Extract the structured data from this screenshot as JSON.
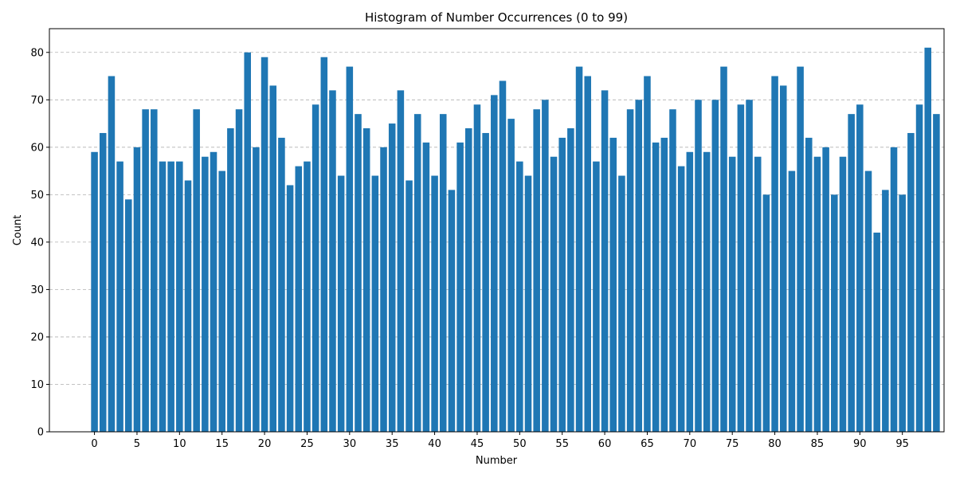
{
  "chart_data": {
    "type": "bar",
    "title": "Histogram of Number Occurrences (0 to 99)",
    "xlabel": "Number",
    "ylabel": "Count",
    "x": [
      0,
      1,
      2,
      3,
      4,
      5,
      6,
      7,
      8,
      9,
      10,
      11,
      12,
      13,
      14,
      15,
      16,
      17,
      18,
      19,
      20,
      21,
      22,
      23,
      24,
      25,
      26,
      27,
      28,
      29,
      30,
      31,
      32,
      33,
      34,
      35,
      36,
      37,
      38,
      39,
      40,
      41,
      42,
      43,
      44,
      45,
      46,
      47,
      48,
      49,
      50,
      51,
      52,
      53,
      54,
      55,
      56,
      57,
      58,
      59,
      60,
      61,
      62,
      63,
      64,
      65,
      66,
      67,
      68,
      69,
      70,
      71,
      72,
      73,
      74,
      75,
      76,
      77,
      78,
      79,
      80,
      81,
      82,
      83,
      84,
      85,
      86,
      87,
      88,
      89,
      90,
      91,
      92,
      93,
      94,
      95,
      96,
      97,
      98,
      99
    ],
    "values": [
      59,
      63,
      75,
      57,
      49,
      60,
      68,
      68,
      57,
      57,
      57,
      53,
      68,
      58,
      59,
      55,
      64,
      68,
      80,
      60,
      79,
      73,
      62,
      52,
      56,
      57,
      69,
      79,
      72,
      54,
      77,
      67,
      64,
      54,
      60,
      65,
      72,
      53,
      67,
      61,
      54,
      67,
      51,
      61,
      64,
      69,
      63,
      71,
      74,
      66,
      57,
      54,
      68,
      70,
      58,
      62,
      64,
      77,
      75,
      57,
      72,
      62,
      54,
      68,
      70,
      75,
      61,
      62,
      68,
      56,
      59,
      70,
      59,
      70,
      77,
      58,
      69,
      70,
      58,
      50,
      75,
      73,
      55,
      77,
      62,
      58,
      60,
      50,
      58,
      67,
      69,
      55,
      42,
      51,
      60,
      50,
      63,
      69,
      81,
      67
    ],
    "xticks": [
      0,
      5,
      10,
      15,
      20,
      25,
      30,
      35,
      40,
      45,
      50,
      55,
      60,
      65,
      70,
      75,
      80,
      85,
      90,
      95
    ],
    "yticks": [
      0,
      10,
      20,
      30,
      40,
      50,
      60,
      70,
      80
    ],
    "xlim": [
      -5.3,
      99.9
    ],
    "ylim": [
      0,
      85
    ],
    "grid": "y-axis dashed",
    "bar_color": "#1f77b4",
    "grid_color": "#b0b0b0"
  }
}
